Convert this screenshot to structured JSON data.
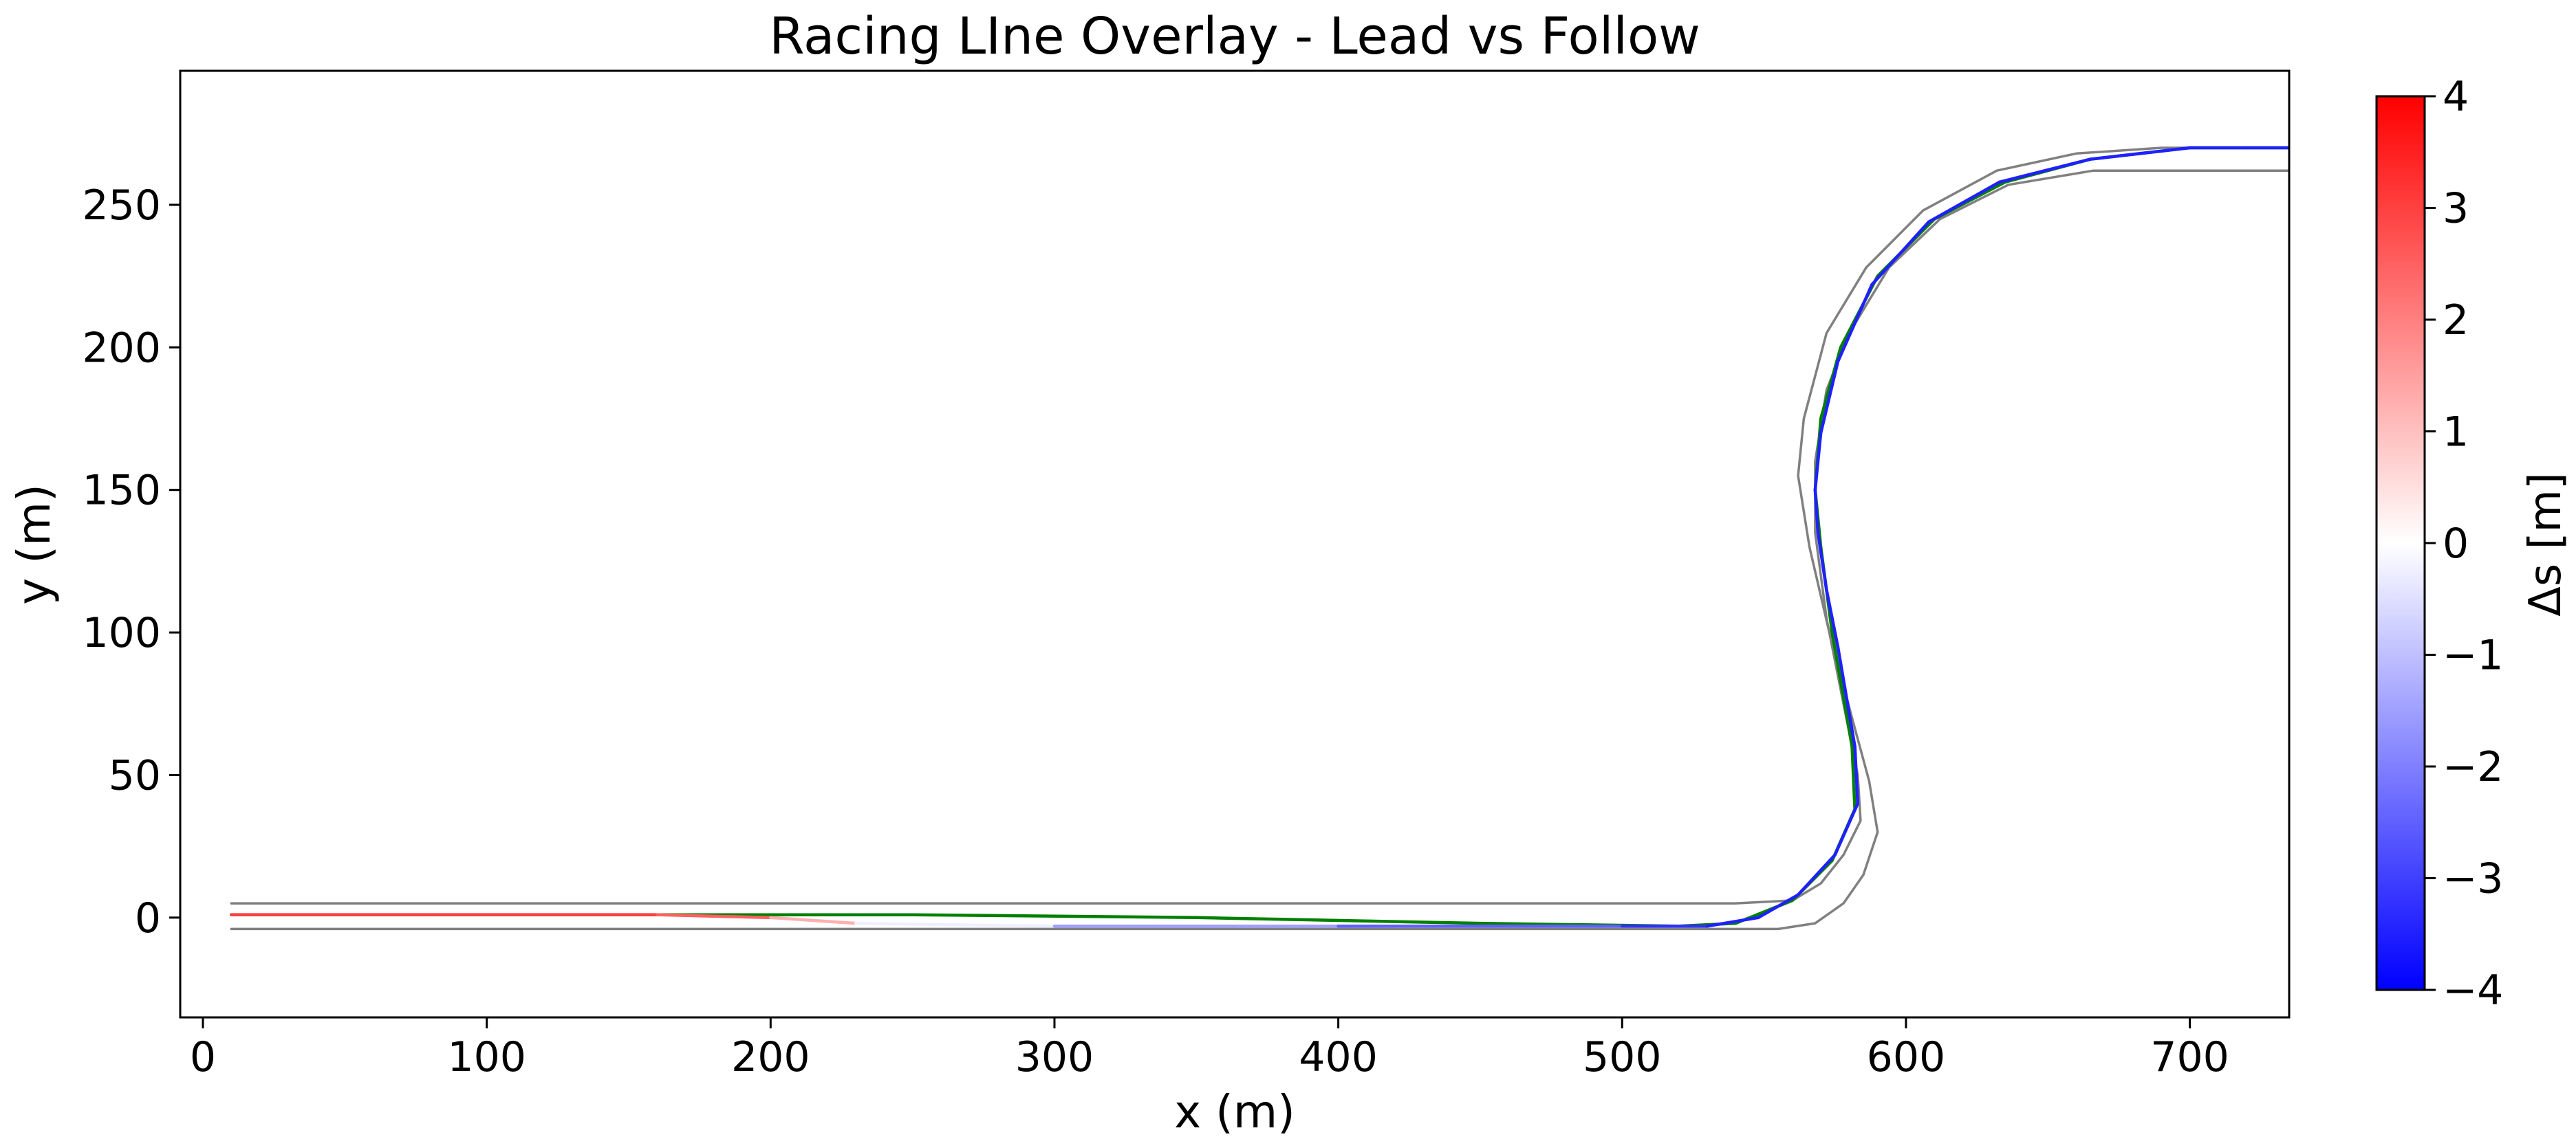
{
  "chart_data": {
    "type": "line",
    "title": "Racing LIne Overlay - Lead vs Follow",
    "xlabel": "x (m)",
    "ylabel": "y (m)",
    "xlim": [
      -8,
      735
    ],
    "ylim": [
      -35,
      297
    ],
    "xticks": [
      0,
      100,
      200,
      300,
      400,
      500,
      600,
      700
    ],
    "yticks": [
      0,
      50,
      100,
      150,
      200,
      250
    ],
    "grid": false,
    "legend": "none",
    "colorbar": {
      "label": "Δs [m]",
      "min": -4,
      "max": 4,
      "ticks": [
        -4,
        -3,
        -2,
        -1,
        0,
        1,
        2,
        3,
        4
      ],
      "tick_labels": [
        "−4",
        "−3",
        "−2",
        "−1",
        "0",
        "1",
        "2",
        "3",
        "4"
      ],
      "colormap": "bwr",
      "low_color": "#0000ff",
      "mid_color": "#ffffff",
      "high_color": "#ff0000"
    },
    "series": [
      {
        "role": "track-boundary",
        "color": "#808080",
        "points": [
          [
            10,
            5
          ],
          [
            540,
            5
          ],
          [
            560,
            6
          ],
          [
            570,
            12
          ],
          [
            578,
            22
          ],
          [
            584,
            34
          ],
          [
            583,
            50
          ],
          [
            578,
            75
          ],
          [
            572,
            105
          ],
          [
            568,
            135
          ],
          [
            568,
            160
          ],
          [
            572,
            185
          ],
          [
            580,
            205
          ],
          [
            594,
            228
          ],
          [
            612,
            245
          ],
          [
            636,
            257
          ],
          [
            666,
            262
          ],
          [
            735,
            262
          ]
        ]
      },
      {
        "role": "track-boundary",
        "color": "#808080",
        "points": [
          [
            10,
            -4
          ],
          [
            555,
            -4
          ],
          [
            568,
            -2
          ],
          [
            578,
            5
          ],
          [
            585,
            15
          ],
          [
            590,
            30
          ],
          [
            587,
            48
          ],
          [
            581,
            70
          ],
          [
            573,
            100
          ],
          [
            566,
            130
          ],
          [
            562,
            155
          ],
          [
            564,
            175
          ],
          [
            572,
            205
          ],
          [
            586,
            228
          ],
          [
            606,
            248
          ],
          [
            632,
            262
          ],
          [
            660,
            268
          ],
          [
            690,
            270
          ],
          [
            735,
            270
          ]
        ]
      },
      {
        "role": "follow-line",
        "color": "#008000",
        "points": [
          [
            10,
            1
          ],
          [
            150,
            1
          ],
          [
            250,
            1
          ],
          [
            350,
            0
          ],
          [
            450,
            -2
          ],
          [
            520,
            -3
          ],
          [
            540,
            -2
          ],
          [
            560,
            6
          ],
          [
            574,
            20
          ],
          [
            582,
            38
          ],
          [
            581,
            60
          ],
          [
            574,
            100
          ],
          [
            570,
            130
          ],
          [
            568,
            150
          ],
          [
            570,
            175
          ],
          [
            577,
            200
          ],
          [
            590,
            225
          ],
          [
            610,
            245
          ],
          [
            635,
            258
          ],
          [
            665,
            266
          ],
          [
            700,
            270
          ],
          [
            735,
            270
          ]
        ]
      },
      {
        "role": "lead-line",
        "color_mode": "colorbar",
        "points": [
          [
            10,
            1
          ],
          [
            80,
            1
          ],
          [
            160,
            1
          ],
          [
            200,
            0
          ],
          [
            230,
            -2
          ],
          [
            300,
            -3
          ],
          [
            400,
            -3
          ],
          [
            500,
            -3
          ],
          [
            530,
            -3
          ],
          [
            548,
            0
          ],
          [
            562,
            8
          ],
          [
            575,
            22
          ],
          [
            583,
            40
          ],
          [
            582,
            60
          ],
          [
            576,
            95
          ],
          [
            572,
            115
          ],
          [
            569,
            135
          ],
          [
            568,
            150
          ],
          [
            570,
            170
          ],
          [
            576,
            195
          ],
          [
            588,
            222
          ],
          [
            608,
            244
          ],
          [
            633,
            258
          ],
          [
            665,
            266
          ],
          [
            700,
            270
          ],
          [
            720,
            270
          ],
          [
            735,
            270
          ]
        ],
        "ds": [
          3.0,
          3.0,
          3.0,
          2.0,
          0.5,
          -1.0,
          -2.0,
          -3.0,
          -3.5,
          -3.5,
          -3.5,
          -3.5,
          -3.5,
          -3.5,
          -3.5,
          -3.5,
          -3.5,
          -3.5,
          -3.5,
          -3.5,
          -3.5,
          -3.5,
          -3.5,
          -3.5,
          -3.5,
          -3.5,
          -3.5
        ]
      }
    ]
  }
}
